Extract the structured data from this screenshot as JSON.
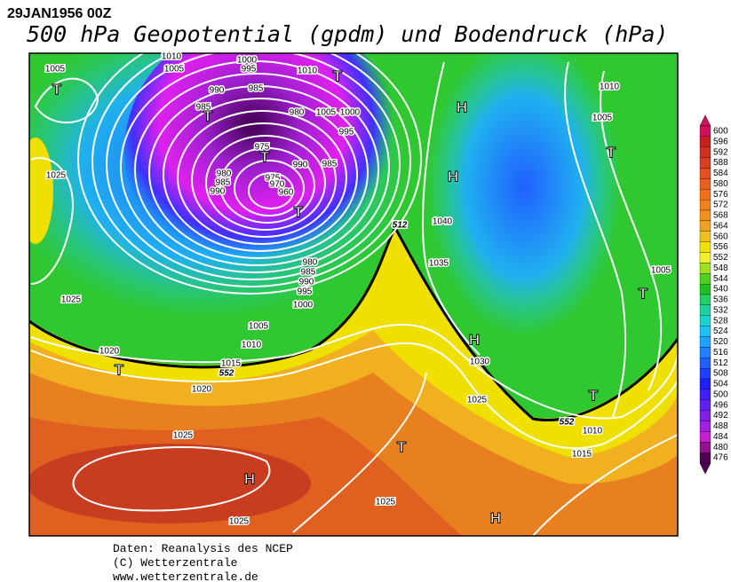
{
  "header": {
    "date": "29JAN1956 00Z",
    "title": "500 hPa Geopotential (gpdm) und Bodendruck (hPa)"
  },
  "footer": {
    "line1": "Daten: Reanalysis des NCEP",
    "line2": "(C) Wetterzentrale",
    "line3": "www.wetterzentrale.de"
  },
  "isobar_labels": [
    "1005",
    "1010",
    "1005",
    "1000",
    "995",
    "1010",
    "990",
    "985",
    "985",
    "980",
    "1005",
    "1000",
    "995",
    "975",
    "990",
    "985",
    "980",
    "985",
    "990",
    "975",
    "970",
    "960",
    "1025",
    "1040",
    "1035",
    "980",
    "985",
    "990",
    "995",
    "1000",
    "1025",
    "1005",
    "1010",
    "1020",
    "1015",
    "1020",
    "1030",
    "1025",
    "1010",
    "1015",
    "1025",
    "1025",
    "1025",
    "1010",
    "1005",
    "1005"
  ],
  "height_labels": [
    "552",
    "552",
    "512"
  ],
  "centers": [
    "T",
    "T",
    "H",
    "T",
    "T",
    "H",
    "T",
    "T",
    "T",
    "H",
    "T",
    "T",
    "T",
    "H",
    "H"
  ],
  "colorbar": {
    "ticks": [
      600,
      596,
      592,
      588,
      584,
      580,
      576,
      572,
      568,
      564,
      560,
      556,
      552,
      548,
      544,
      540,
      536,
      532,
      528,
      524,
      520,
      516,
      512,
      508,
      504,
      500,
      496,
      492,
      488,
      484,
      480,
      476
    ],
    "colors": [
      "#d0105a",
      "#c82020",
      "#d03020",
      "#d84020",
      "#e05020",
      "#e86020",
      "#f07020",
      "#f08020",
      "#f09020",
      "#f0a020",
      "#f0c020",
      "#f0e000",
      "#f0f030",
      "#a0e020",
      "#50d020",
      "#20c020",
      "#20d060",
      "#20d0a0",
      "#20d0d0",
      "#20c0f0",
      "#20a0ff",
      "#2080ff",
      "#2060ff",
      "#2040ff",
      "#2020ff",
      "#4020ff",
      "#6020f0",
      "#8020e0",
      "#a020e0",
      "#c020d0",
      "#901090",
      "#500050"
    ]
  }
}
